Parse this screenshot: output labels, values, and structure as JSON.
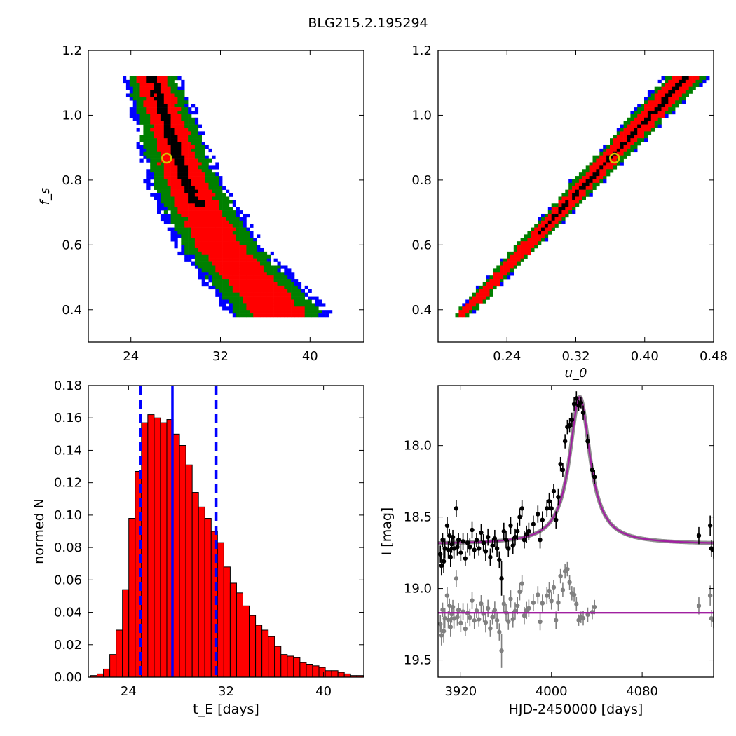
{
  "figure": {
    "title": "BLG215.2.195294"
  },
  "chart_data": [
    {
      "id": "tl",
      "type": "heatmap",
      "xlabel": "",
      "ylabel": "f_s",
      "xlim": [
        20.2,
        44.8
      ],
      "ylim": [
        0.3,
        1.2
      ],
      "xticks": [
        24,
        32,
        40
      ],
      "yticks": [
        0.4,
        0.6,
        0.8,
        1.0,
        1.2
      ],
      "colors": {
        "inner": "#000000",
        "one_sigma": "#ff0000",
        "two_sigma": "#008000",
        "three_sigma": "#0000ff",
        "marker": "#d4c800"
      },
      "best_fit": {
        "x": 27.2,
        "y": 0.868
      },
      "bands": [
        {
          "y": 1.12,
          "c": 25.7
        },
        {
          "y": 1.0,
          "c": 26.9
        },
        {
          "y": 0.8,
          "c": 28.7
        },
        {
          "y": 0.6,
          "c": 31.8
        },
        {
          "y": 0.4,
          "c": 37.0
        }
      ]
    },
    {
      "id": "tr",
      "type": "heatmap",
      "xlabel": "u_0",
      "ylabel": "",
      "xlim": [
        0.16,
        0.48
      ],
      "ylim": [
        0.3,
        1.2
      ],
      "xticks": [
        0.24,
        0.32,
        0.4,
        0.48
      ],
      "yticks": [
        0.4,
        0.6,
        0.8,
        1.0,
        1.2
      ],
      "colors": {
        "inner": "#000000",
        "one_sigma": "#ff0000",
        "two_sigma": "#008000",
        "three_sigma": "#0000ff",
        "marker": "#d4c800"
      },
      "best_fit": {
        "x": 0.365,
        "y": 0.868
      },
      "band": {
        "u_start": 0.185,
        "f_start": 0.385,
        "u_end": 0.445,
        "f_end": 1.12
      }
    },
    {
      "id": "bl",
      "type": "bar",
      "xlabel": "t_E [days]",
      "ylabel": "normed N",
      "xlim": [
        20.7,
        43.3
      ],
      "ylim": [
        0,
        0.18
      ],
      "xticks": [
        24,
        32,
        40
      ],
      "yticks": [
        0.0,
        0.02,
        0.04,
        0.06,
        0.08,
        0.1,
        0.12,
        0.14,
        0.16,
        0.18
      ],
      "bin_start": 20.9,
      "bin_width": 0.52,
      "values": [
        0.001,
        0.002,
        0.005,
        0.014,
        0.029,
        0.054,
        0.098,
        0.127,
        0.157,
        0.162,
        0.16,
        0.157,
        0.159,
        0.15,
        0.143,
        0.131,
        0.114,
        0.105,
        0.098,
        0.09,
        0.083,
        0.068,
        0.058,
        0.052,
        0.044,
        0.038,
        0.032,
        0.029,
        0.025,
        0.019,
        0.014,
        0.013,
        0.012,
        0.009,
        0.008,
        0.007,
        0.006,
        0.004,
        0.004,
        0.003,
        0.002,
        0.001,
        0.001
      ],
      "colors": {
        "bar": "#ff0000",
        "edge": "#000000",
        "line": "#0000ff"
      },
      "median": 27.6,
      "lower": 25.0,
      "upper": 31.2
    },
    {
      "id": "br",
      "type": "scatter",
      "xlabel": "HJD-2450000 [days]",
      "ylabel": "I [mag]",
      "xlim": [
        3900,
        4143
      ],
      "ylim": [
        19.62,
        17.58
      ],
      "xticks": [
        3920,
        4000,
        4080
      ],
      "yticks": [
        18.0,
        18.5,
        19.0,
        19.5
      ],
      "colors": {
        "data": "#000000",
        "residual": "#808080",
        "model": "#a020a0",
        "model_band": "#606060"
      },
      "model": {
        "baseline": 18.69,
        "peak": 17.66,
        "t0": 4025,
        "tau": 11,
        "residual_level": 19.17
      },
      "points": [
        [
          3902,
          18.76,
          0.06
        ],
        [
          3903,
          18.84,
          0.07
        ],
        [
          3904,
          18.66,
          0.05
        ],
        [
          3905,
          18.81,
          0.08
        ],
        [
          3906,
          18.72,
          0.07
        ],
        [
          3908,
          18.56,
          0.06
        ],
        [
          3909,
          18.73,
          0.06
        ],
        [
          3910,
          18.63,
          0.05
        ],
        [
          3911,
          18.78,
          0.07
        ],
        [
          3912,
          18.69,
          0.06
        ],
        [
          3913,
          18.64,
          0.05
        ],
        [
          3914,
          18.72,
          0.07
        ],
        [
          3916,
          18.44,
          0.06
        ],
        [
          3917,
          18.71,
          0.06
        ],
        [
          3918,
          18.66,
          0.05
        ],
        [
          3920,
          18.75,
          0.06
        ],
        [
          3922,
          18.67,
          0.06
        ],
        [
          3924,
          18.79,
          0.05
        ],
        [
          3926,
          18.68,
          0.07
        ],
        [
          3928,
          18.71,
          0.06
        ],
        [
          3930,
          18.59,
          0.06
        ],
        [
          3932,
          18.73,
          0.06
        ],
        [
          3934,
          18.66,
          0.05
        ],
        [
          3936,
          18.72,
          0.05
        ],
        [
          3938,
          18.61,
          0.06
        ],
        [
          3940,
          18.68,
          0.06
        ],
        [
          3942,
          18.74,
          0.07
        ],
        [
          3944,
          18.64,
          0.06
        ],
        [
          3946,
          18.78,
          0.06
        ],
        [
          3948,
          18.7,
          0.05
        ],
        [
          3950,
          18.65,
          0.06
        ],
        [
          3952,
          18.72,
          0.06
        ],
        [
          3954,
          18.8,
          0.06
        ],
        [
          3956,
          18.93,
          0.12
        ],
        [
          3958,
          18.6,
          0.06
        ],
        [
          3960,
          18.66,
          0.06
        ],
        [
          3962,
          18.72,
          0.06
        ],
        [
          3964,
          18.56,
          0.06
        ],
        [
          3966,
          18.7,
          0.06
        ],
        [
          3968,
          18.64,
          0.06
        ],
        [
          3970,
          18.6,
          0.06
        ],
        [
          3972,
          18.5,
          0.06
        ],
        [
          3974,
          18.44,
          0.06
        ],
        [
          3976,
          18.66,
          0.06
        ],
        [
          3978,
          18.62,
          0.06
        ],
        [
          3980,
          18.6,
          0.06
        ],
        [
          3984,
          18.55,
          0.06
        ],
        [
          3988,
          18.48,
          0.06
        ],
        [
          3990,
          18.66,
          0.06
        ],
        [
          3992,
          18.52,
          0.06
        ],
        [
          3996,
          18.44,
          0.06
        ],
        [
          3998,
          18.39,
          0.06
        ],
        [
          4000,
          18.44,
          0.06
        ],
        [
          4002,
          18.32,
          0.05
        ],
        [
          4004,
          18.52,
          0.06
        ],
        [
          4006,
          18.36,
          0.06
        ],
        [
          4008,
          18.13,
          0.05
        ],
        [
          4010,
          18.17,
          0.05
        ],
        [
          4012,
          17.97,
          0.05
        ],
        [
          4014,
          17.87,
          0.05
        ],
        [
          4016,
          17.86,
          0.05
        ],
        [
          4018,
          17.82,
          0.05
        ],
        [
          4020,
          17.71,
          0.05
        ],
        [
          4022,
          17.67,
          0.05
        ],
        [
          4024,
          17.72,
          0.04
        ],
        [
          4026,
          17.7,
          0.04
        ],
        [
          4028,
          17.77,
          0.05
        ],
        [
          4032,
          17.97,
          0.05
        ],
        [
          4036,
          18.17,
          0.05
        ],
        [
          4038,
          18.22,
          0.05
        ],
        [
          4130,
          18.63,
          0.06
        ],
        [
          4140,
          18.56,
          0.07
        ],
        [
          4141,
          18.72,
          0.06
        ],
        [
          4143,
          18.73,
          0.06
        ]
      ]
    }
  ]
}
